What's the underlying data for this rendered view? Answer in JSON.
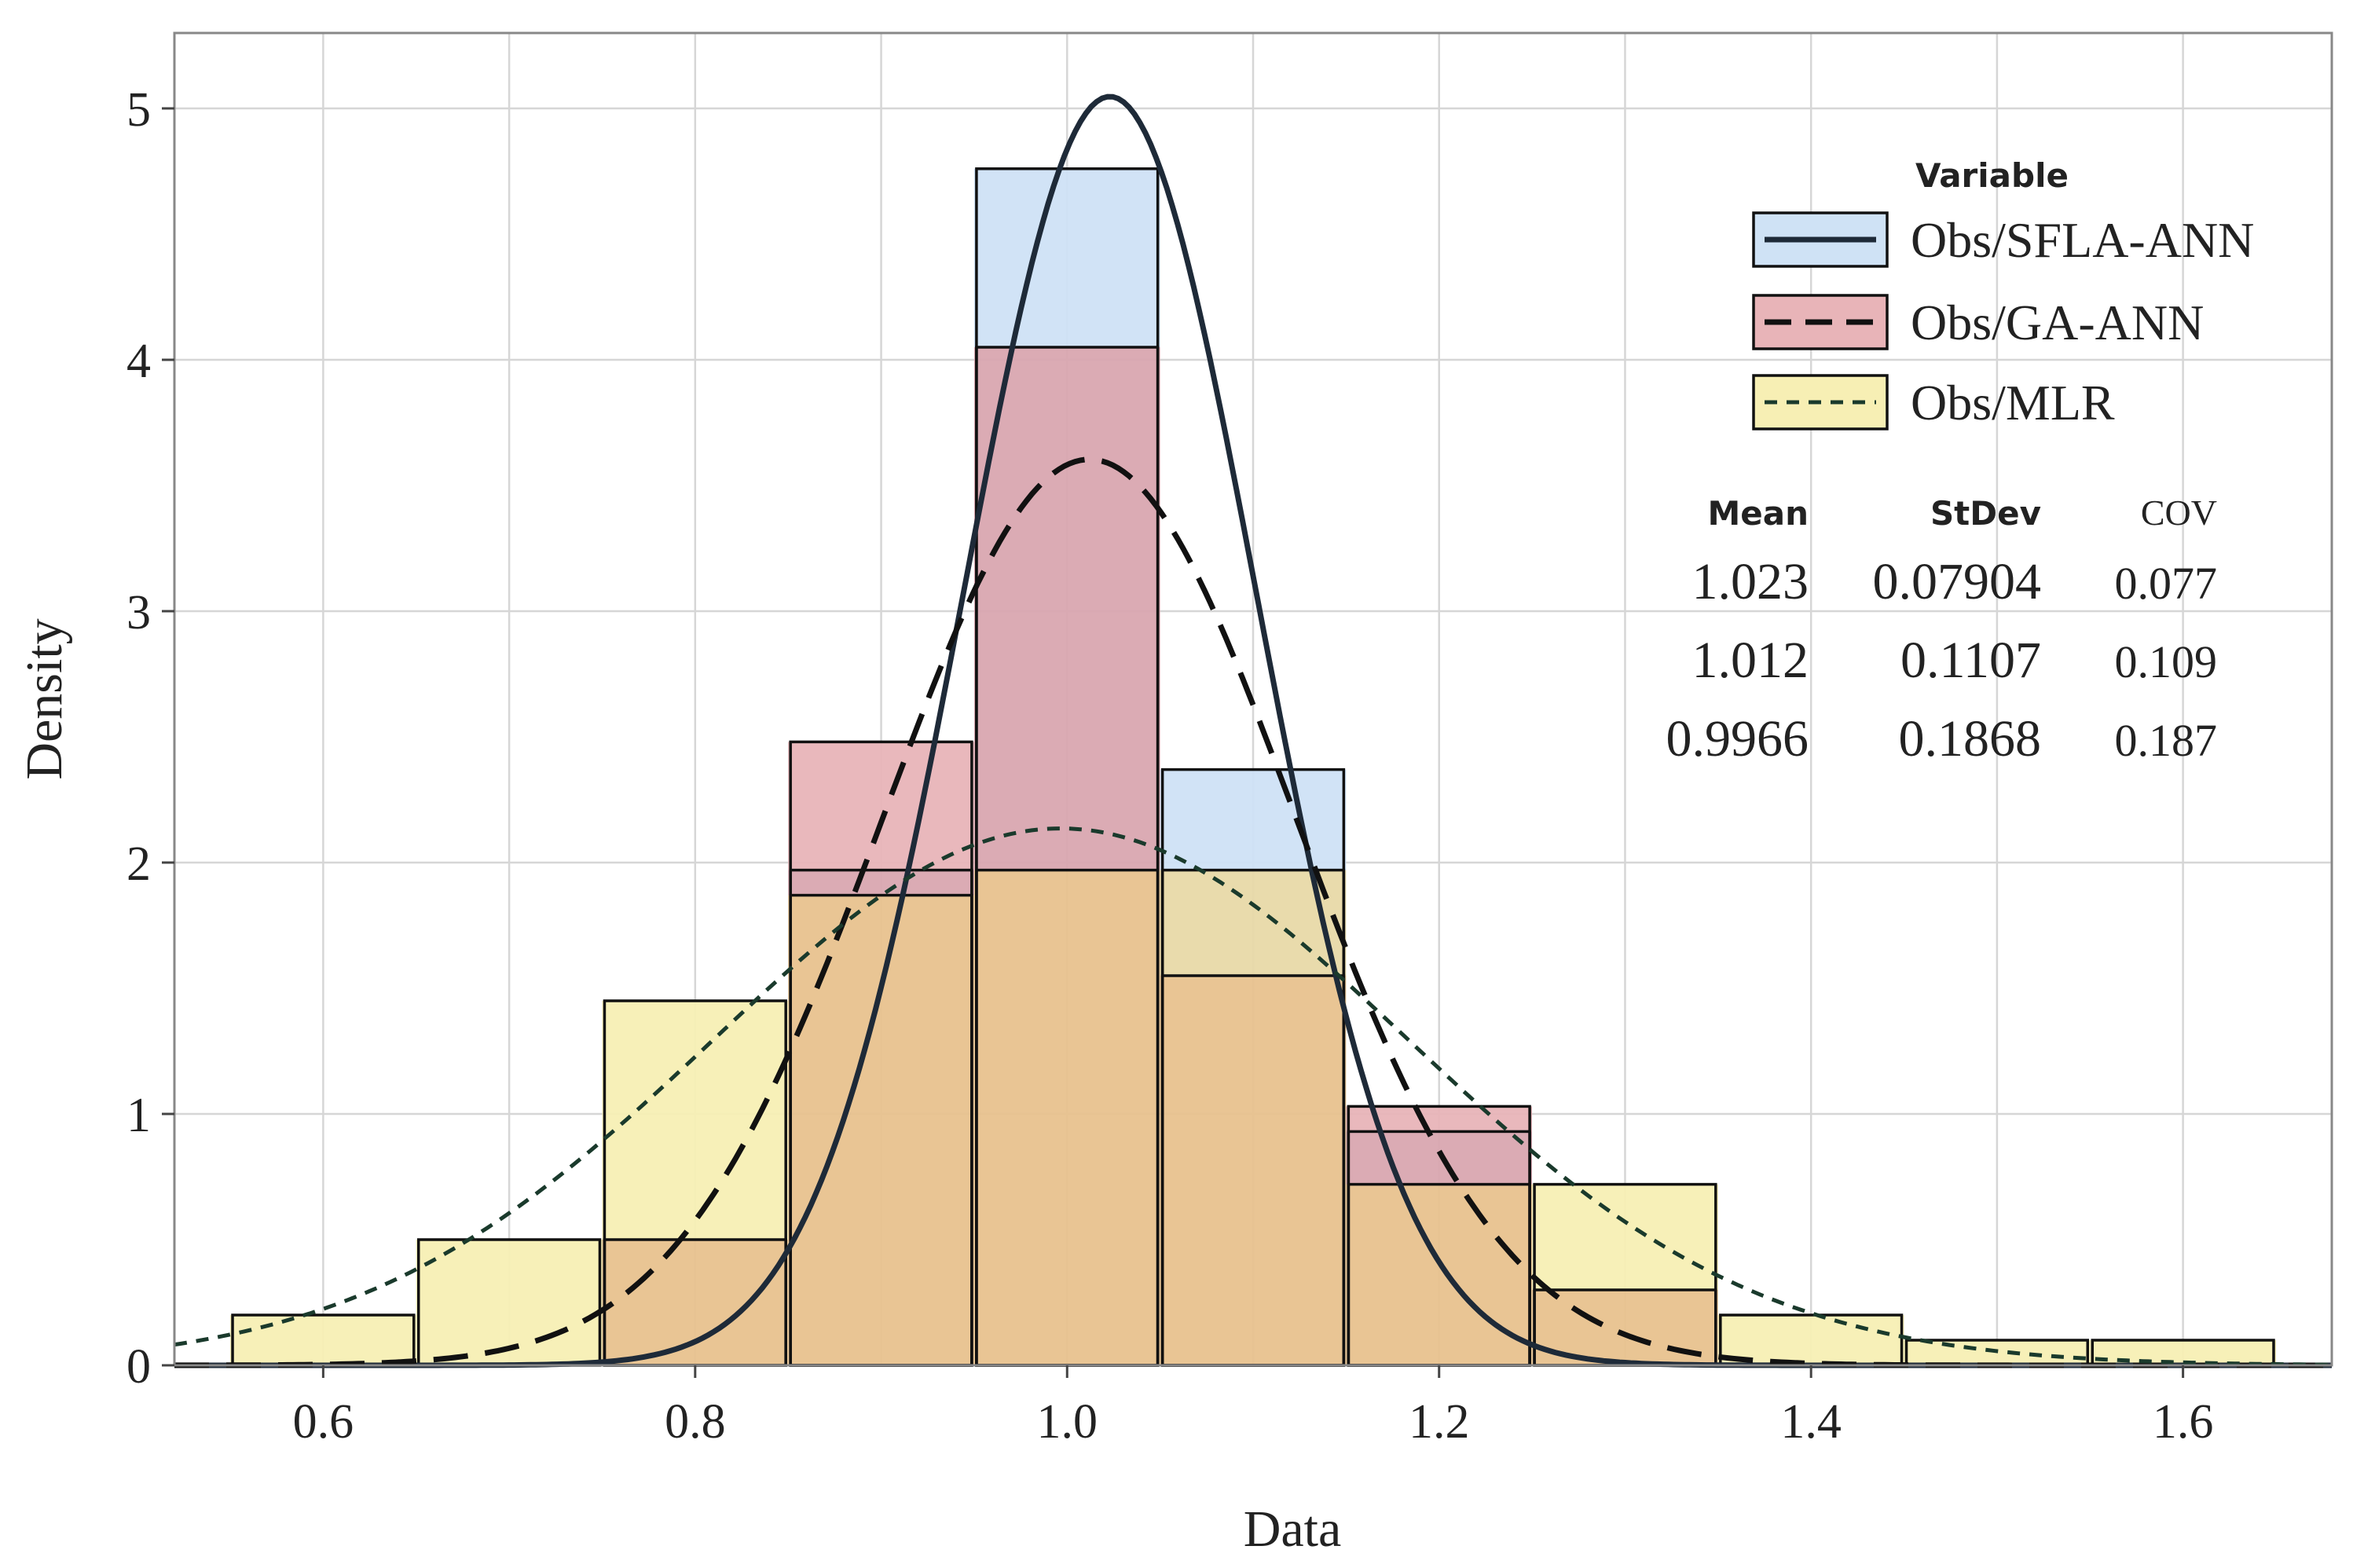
{
  "chart_data": {
    "type": "histogram",
    "xlabel": "Data",
    "ylabel": "Density",
    "xlim": [
      0.52,
      1.68
    ],
    "ylim": [
      0,
      5.3
    ],
    "x_ticks": [
      0.6,
      0.8,
      1.0,
      1.2,
      1.4,
      1.6
    ],
    "x_tick_labels": [
      "0.6",
      "0.8",
      "1.0",
      "1.2",
      "1.4",
      "1.6"
    ],
    "y_ticks": [
      0,
      1,
      2,
      3,
      4,
      5
    ],
    "y_tick_labels": [
      "0",
      "1",
      "2",
      "3",
      "4",
      "5"
    ],
    "grid": true,
    "bin_width": 0.1,
    "bins": [
      {
        "center": 0.6,
        "mlr": 0.2,
        "ga": 0,
        "sfla": 0
      },
      {
        "center": 0.7,
        "mlr": 0.5,
        "ga": 0,
        "sfla": 0
      },
      {
        "center": 0.8,
        "mlr": 1.45,
        "ga": 0.5,
        "sfla": 0
      },
      {
        "center": 0.9,
        "mlr": 1.87,
        "ga": 2.48,
        "sfla": 1.97
      },
      {
        "center": 1.0,
        "mlr": 1.97,
        "ga": 4.05,
        "sfla": 4.76
      },
      {
        "center": 1.1,
        "mlr": 1.97,
        "ga": 1.55,
        "sfla": 2.37
      },
      {
        "center": 1.2,
        "mlr": 0.72,
        "ga": 1.03,
        "sfla": 0.93
      },
      {
        "center": 1.3,
        "mlr": 0.72,
        "ga": 0.3,
        "sfla": 0
      },
      {
        "center": 1.4,
        "mlr": 0.2,
        "ga": 0,
        "sfla": 0
      },
      {
        "center": 1.5,
        "mlr": 0.1,
        "ga": 0,
        "sfla": 0
      },
      {
        "center": 1.6,
        "mlr": 0.1,
        "ga": 0,
        "sfla": 0
      }
    ],
    "series": [
      {
        "key": "sfla",
        "name": "Obs/SFLA-ANN",
        "mean": 1.023,
        "stdev": 0.07904,
        "cov": 0.077,
        "line": "solid",
        "fill": "#cfe2f5",
        "line_color": "#1e2a38"
      },
      {
        "key": "ga",
        "name": "Obs/GA-ANN",
        "mean": 1.012,
        "stdev": 0.1107,
        "cov": 0.109,
        "line": "dashed",
        "fill": "#e8b4b8",
        "line_color": "#111111"
      },
      {
        "key": "mlr",
        "name": "Obs/MLR",
        "mean": 0.9966,
        "stdev": 0.1868,
        "cov": 0.187,
        "line": "dotted",
        "fill": "#f7efb4",
        "line_color": "#1a3a2c"
      }
    ],
    "overlap_fill": "#e8c28e",
    "legend": {
      "title": "Variable",
      "position": "top-right",
      "stats_headers": {
        "mean": "Mean",
        "stdev": "StDev",
        "cov": "COV"
      },
      "rows": [
        {
          "mean": "1.023",
          "stdev": "0.07904",
          "cov": "0.077"
        },
        {
          "mean": "1.012",
          "stdev": "0.1107",
          "cov": "0.109"
        },
        {
          "mean": "0.9966",
          "stdev": "0.1868",
          "cov": "0.187"
        }
      ]
    }
  }
}
